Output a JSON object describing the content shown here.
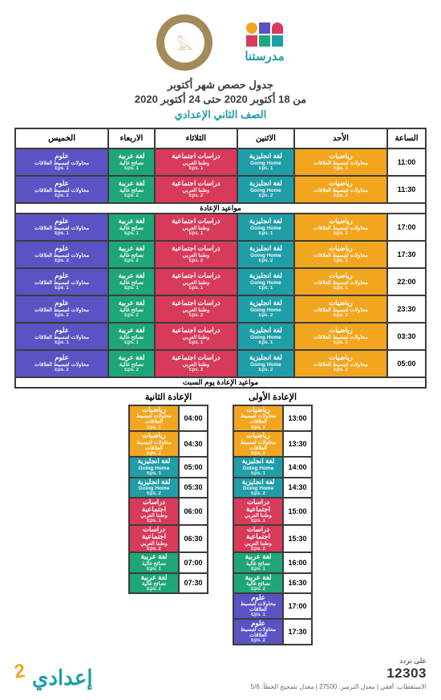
{
  "colors": {
    "math": "#f2a61f",
    "english": "#1f9ea8",
    "social": "#d83a5a",
    "arabic": "#1ea678",
    "science": "#5b52c4",
    "border": "#3c3c3c",
    "brand": "#1f9ea8",
    "logo_shapes": [
      "#d83a5a",
      "#5b52c4",
      "#f2a61f",
      "#1f9ea8",
      "#1ea678",
      "#d83a5a"
    ]
  },
  "brand_text": "مدرستنا",
  "titles": {
    "line1": "جدول حصص شهر أكتوبر",
    "line2": "من 18 أكتوبر 2020 حتى 24 أكتوبر 2020",
    "line3": "الصف الثاني الإعدادي"
  },
  "headers": [
    "الساعة",
    "الأحد",
    "الاثنين",
    "الثلاثاء",
    "الاربعاء",
    "الخميس"
  ],
  "subjects": {
    "math": {
      "name": "رياضيات",
      "sub1": "محاولات لتبسيط العلاقات",
      "color": "math"
    },
    "eng": {
      "name": "لغة انجليزية",
      "sub1": "Going Home",
      "color": "english"
    },
    "soc": {
      "name": "دراسات اجتماعية",
      "sub1": "وطننا العربي",
      "color": "social"
    },
    "ar": {
      "name": "لغة عربية",
      "sub1": "نصائح غالية",
      "color": "arabic"
    },
    "sci": {
      "name": "علوم",
      "sub1": "محاولات لتبسيط العلاقات",
      "color": "science"
    }
  },
  "main_rows": [
    {
      "time": "11:00",
      "eps": "Eps. 1",
      "cells": [
        "math",
        "eng",
        "soc",
        "ar",
        "sci"
      ]
    },
    {
      "time": "11:30",
      "eps": "Eps. 2",
      "cells": [
        "math",
        "eng",
        "soc",
        "ar",
        "sci"
      ]
    }
  ],
  "section2_title": "مواعيد الإعادة",
  "replay_rows": [
    {
      "time": "17:00",
      "eps": "Eps. 1",
      "cells": [
        "math",
        "eng",
        "soc",
        "ar",
        "sci"
      ]
    },
    {
      "time": "17:30",
      "eps": "Eps. 2",
      "cells": [
        "math",
        "eng",
        "soc",
        "ar",
        "sci"
      ]
    },
    {
      "time": "22:00",
      "eps": "Eps. 1",
      "cells": [
        "math",
        "eng",
        "soc",
        "ar",
        "sci"
      ]
    },
    {
      "time": "23:30",
      "eps": "Eps. 2",
      "cells": [
        "math",
        "eng",
        "soc",
        "ar",
        "sci"
      ]
    },
    {
      "time": "03:30",
      "eps": "Eps. 1",
      "cells": [
        "math",
        "eng",
        "soc",
        "ar",
        "sci"
      ]
    },
    {
      "time": "05:00",
      "eps": "Eps. 2",
      "cells": [
        "math",
        "eng",
        "soc",
        "ar",
        "sci"
      ]
    }
  ],
  "section3_title": "مواعيد الإعادة يوم السبت",
  "saturday": {
    "col1": {
      "title": "الإعادة الأولى",
      "rows": [
        {
          "time": "13:00",
          "subj": "math",
          "eps": "Eps. 1"
        },
        {
          "time": "13:30",
          "subj": "math",
          "eps": "Eps. 2"
        },
        {
          "time": "14:00",
          "subj": "eng",
          "eps": "Eps. 1"
        },
        {
          "time": "14:30",
          "subj": "eng",
          "eps": "Eps. 2"
        },
        {
          "time": "15:00",
          "subj": "soc",
          "eps": "Eps. 1"
        },
        {
          "time": "15:30",
          "subj": "soc",
          "eps": "Eps. 2"
        },
        {
          "time": "16:00",
          "subj": "ar",
          "eps": "Eps. 1"
        },
        {
          "time": "16:30",
          "subj": "ar",
          "eps": "Eps. 2"
        },
        {
          "time": "17:00",
          "subj": "sci",
          "eps": "Eps. 1"
        },
        {
          "time": "17:30",
          "subj": "sci",
          "eps": "Eps. 2"
        }
      ]
    },
    "col2": {
      "title": "الإعادة الثانية",
      "rows": [
        {
          "time": "04:00",
          "subj": "math",
          "eps": "Eps. 1"
        },
        {
          "time": "04:30",
          "subj": "math",
          "eps": "Eps. 2"
        },
        {
          "time": "05:00",
          "subj": "eng",
          "eps": "Eps. 1"
        },
        {
          "time": "05:30",
          "subj": "eng",
          "eps": "Eps. 2"
        },
        {
          "time": "06:00",
          "subj": "soc",
          "eps": "Eps. 1"
        },
        {
          "time": "06:30",
          "subj": "soc",
          "eps": "Eps. 2"
        },
        {
          "time": "07:00",
          "subj": "ar",
          "eps": "Eps. 1"
        },
        {
          "time": "07:30",
          "subj": "ar",
          "eps": "Eps. 2"
        }
      ]
    }
  },
  "footer": {
    "freq_label": "على تردد",
    "freq_num": "12303",
    "freq_detail": "الاستقطاب: أفقي | معدل الترميز: 27500 | معدل تصحيح الخطأ: 5/6",
    "grade_text": "إعدادي",
    "grade_num": "2"
  }
}
